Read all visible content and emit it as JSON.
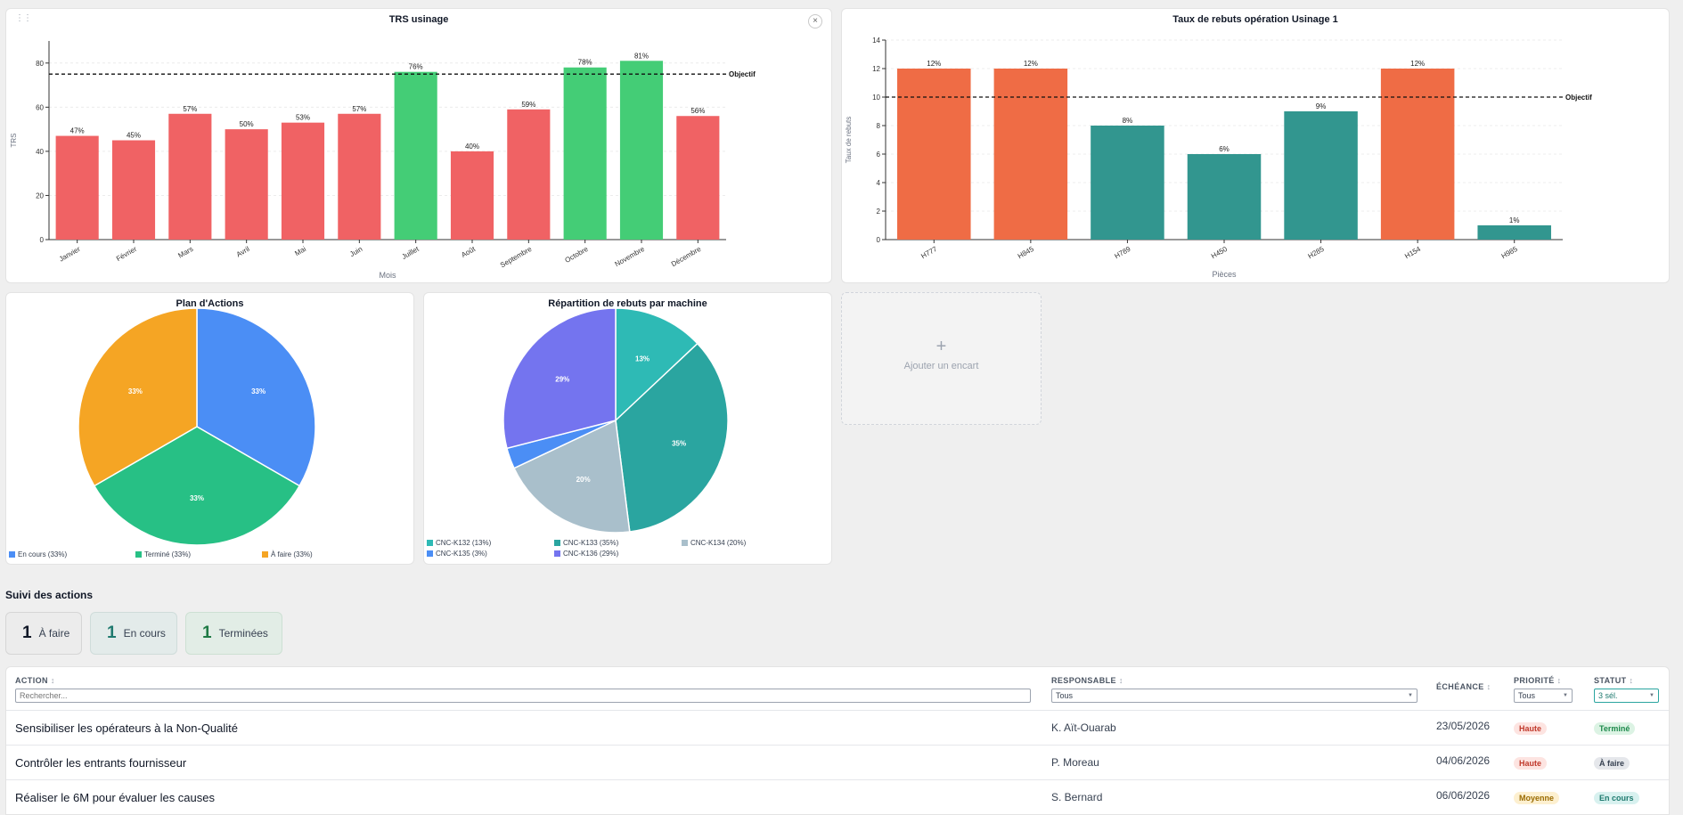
{
  "trs_chart": {
    "title": "TRS usinage",
    "close_label": "×",
    "chart_data": {
      "type": "bar",
      "title": "TRS usinage",
      "categories": [
        "Janvier",
        "Février",
        "Mars",
        "Avril",
        "Mai",
        "Juin",
        "Juillet",
        "Août",
        "Septembre",
        "Octobre",
        "Novembre",
        "Décembre"
      ],
      "values": [
        47,
        45,
        57,
        50,
        53,
        57,
        76,
        40,
        59,
        78,
        81,
        56
      ],
      "value_labels": [
        "47%",
        "45%",
        "57%",
        "50%",
        "53%",
        "57%",
        "76%",
        "40%",
        "59%",
        "78%",
        "81%",
        "56%"
      ],
      "colors": [
        "#f06264",
        "#f06264",
        "#f06264",
        "#f06264",
        "#f06264",
        "#f06264",
        "#44cd76",
        "#f06264",
        "#f06264",
        "#44cd76",
        "#44cd76",
        "#f06264"
      ],
      "xlabel": "Mois",
      "ylabel": "TRS",
      "ylim": [
        0,
        90
      ],
      "yticks": [
        0,
        20,
        40,
        60,
        80
      ],
      "objective": 75,
      "objective_label": "Objectif",
      "grid": true
    }
  },
  "rebuts_chart": {
    "title": "Taux de rebuts opération Usinage 1",
    "chart_data": {
      "type": "bar",
      "title": "Taux de rebuts opération Usinage 1",
      "categories": [
        "H777",
        "H845",
        "H789",
        "H450",
        "H285",
        "H154",
        "H985"
      ],
      "values": [
        12,
        12,
        8,
        6,
        9,
        12,
        1
      ],
      "value_labels": [
        "12%",
        "12%",
        "8%",
        "6%",
        "9%",
        "12%",
        "1%"
      ],
      "colors": [
        "#ef6c45",
        "#ef6c45",
        "#32968f",
        "#32968f",
        "#32968f",
        "#ef6c45",
        "#32968f"
      ],
      "xlabel": "Pièces",
      "ylabel": "Taux de rebuts",
      "ylim": [
        0,
        14
      ],
      "yticks": [
        0,
        2,
        4,
        6,
        8,
        10,
        12,
        14
      ],
      "objective": 10,
      "objective_label": "Objectif",
      "grid": true
    }
  },
  "plan_chart": {
    "title": "Plan d'Actions",
    "chart_data": {
      "type": "pie",
      "title": "Plan d'Actions",
      "slices": [
        {
          "name": "En cours",
          "value": 33,
          "label": "33%",
          "legend": "En cours (33%)",
          "color": "#4b8ef5"
        },
        {
          "name": "Terminé",
          "value": 33,
          "label": "33%",
          "legend": "Terminé (33%)",
          "color": "#27c085"
        },
        {
          "name": "À faire",
          "value": 33,
          "label": "33%",
          "legend": "À faire (33%)",
          "color": "#f5a524"
        }
      ]
    }
  },
  "machine_chart": {
    "title": "Répartition de rebuts par machine",
    "chart_data": {
      "type": "pie",
      "title": "Répartition de rebuts par machine",
      "slices": [
        {
          "name": "CNC-K132",
          "value": 13,
          "label": "13%",
          "legend": "CNC-K132 (13%)",
          "color": "#2ebab5"
        },
        {
          "name": "CNC-K133",
          "value": 35,
          "label": "35%",
          "legend": "CNC-K133 (35%)",
          "color": "#2aa5a0"
        },
        {
          "name": "CNC-K134",
          "value": 20,
          "label": "20%",
          "legend": "CNC-K134 (20%)",
          "color": "#a9bfcb"
        },
        {
          "name": "CNC-K135",
          "value": 3,
          "label": "",
          "legend": "CNC-K135 (3%)",
          "color": "#4b8ef5"
        },
        {
          "name": "CNC-K136",
          "value": 29,
          "label": "29%",
          "legend": "CNC-K136 (29%)",
          "color": "#7474ef"
        }
      ]
    }
  },
  "add_card": {
    "plus": "+",
    "label": "Ajouter un encart"
  },
  "suivi": {
    "title": "Suivi des actions",
    "kpis": [
      {
        "num": "1",
        "label": "À faire",
        "bg": "#ececec",
        "border": "#d6d6d6",
        "num_color": "#111827"
      },
      {
        "num": "1",
        "label": "En cours",
        "bg": "#e3ebea",
        "border": "#cfdcda",
        "num_color": "#1f7a6f"
      },
      {
        "num": "1",
        "label": "Terminées",
        "bg": "#e2ede6",
        "border": "#cde0d3",
        "num_color": "#1f7a45"
      }
    ]
  },
  "table": {
    "headers": {
      "action": "ACTION",
      "responsable": "RESPONSABLE",
      "echeance": "ÉCHÉANCE",
      "priorite": "PRIORITÉ",
      "statut": "STATUT"
    },
    "sort_icon": "↕",
    "filters": {
      "search_placeholder": "Rechercher...",
      "responsable": "Tous",
      "priorite": "Tous",
      "statut": "3 sél."
    },
    "rows": [
      {
        "action": "Sensibiliser les opérateurs à la Non-Qualité",
        "responsable": "K. Aït-Ouarab",
        "echeance": "23/05/2026",
        "priorite": "Haute",
        "statut": "Terminé"
      },
      {
        "action": "Contrôler les entrants fournisseur",
        "responsable": "P. Moreau",
        "echeance": "04/06/2026",
        "priorite": "Haute",
        "statut": "À faire"
      },
      {
        "action": "Réaliser le 6M pour évaluer les causes",
        "responsable": "S. Bernard",
        "echeance": "06/06/2026",
        "priorite": "Moyenne",
        "statut": "En cours"
      }
    ]
  },
  "badge_colors": {
    "Haute": {
      "bg": "#fde4e1",
      "fg": "#c0392b"
    },
    "Moyenne": {
      "bg": "#fdf0d0",
      "fg": "#9a6b00"
    },
    "Terminé": {
      "bg": "#dcf3e4",
      "fg": "#1e8a4c"
    },
    "À faire": {
      "bg": "#e5e7eb",
      "fg": "#374151"
    },
    "En cours": {
      "bg": "#d8f1ef",
      "fg": "#1f7a6f"
    }
  }
}
